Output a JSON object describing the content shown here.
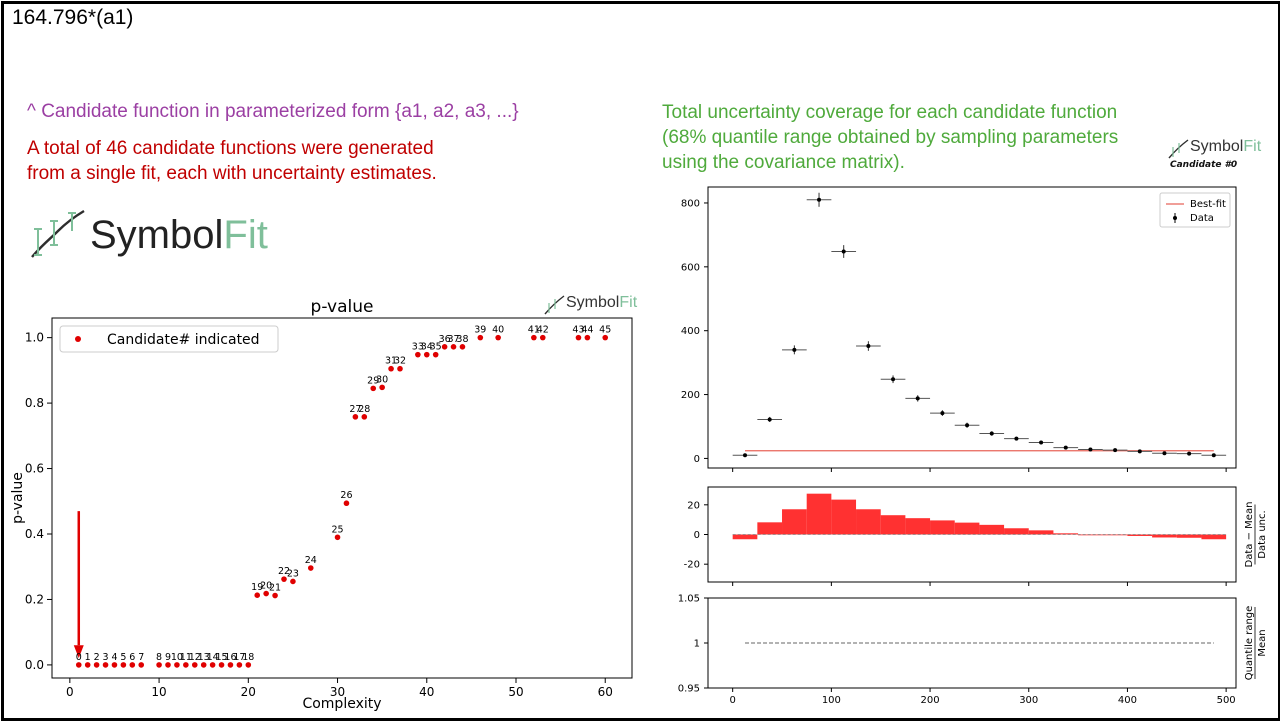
{
  "formula": "164.796*(a1)",
  "notes": {
    "parameterized": "^ Candidate function in parameterized form {a1, a2, a3, ...}",
    "total_line1": "A total of 46 candidate functions were generated",
    "total_line2": "from a single fit, each with uncertainty estimates.",
    "coverage_line1": "Total uncertainty coverage for each candidate function",
    "coverage_line2": "(68% quantile range obtained by sampling parameters",
    "coverage_line3": "using the covariance matrix)."
  },
  "logo": {
    "symbol": "Symbol",
    "fit": "Fit"
  },
  "candidate_label": "Candidate #0",
  "colors": {
    "red": "#e00000",
    "purple": "#9b3fa3",
    "green": "#4faa3c",
    "bestfit": "#e8645a",
    "residual": "#ff2020"
  },
  "chart_data": [
    {
      "type": "scatter",
      "title": "p-value",
      "xlabel": "Complexity",
      "ylabel": "p-value",
      "xlim": [
        -2,
        63
      ],
      "ylim": [
        -0.04,
        1.06
      ],
      "xticks": [
        0,
        10,
        20,
        30,
        40,
        50,
        60
      ],
      "yticks": [
        "0.0",
        "0.2",
        "0.4",
        "0.6",
        "0.8",
        "1.0"
      ],
      "legend": "Candidate# indicated",
      "legend_position": "top-left",
      "points": [
        {
          "label": "0",
          "x": 1,
          "y": 0
        },
        {
          "label": "1",
          "x": 2,
          "y": 0
        },
        {
          "label": "2",
          "x": 3,
          "y": 0
        },
        {
          "label": "3",
          "x": 4,
          "y": 0
        },
        {
          "label": "4",
          "x": 5,
          "y": 0
        },
        {
          "label": "5",
          "x": 6,
          "y": 0
        },
        {
          "label": "6",
          "x": 7,
          "y": 0
        },
        {
          "label": "7",
          "x": 8,
          "y": 0
        },
        {
          "label": "8",
          "x": 10,
          "y": 0
        },
        {
          "label": "9",
          "x": 11,
          "y": 0
        },
        {
          "label": "10",
          "x": 12,
          "y": 0
        },
        {
          "label": "11",
          "x": 13,
          "y": 0
        },
        {
          "label": "12",
          "x": 14,
          "y": 0
        },
        {
          "label": "13",
          "x": 15,
          "y": 0
        },
        {
          "label": "14",
          "x": 16,
          "y": 0
        },
        {
          "label": "15",
          "x": 17,
          "y": 0
        },
        {
          "label": "16",
          "x": 18,
          "y": 0
        },
        {
          "label": "17",
          "x": 19,
          "y": 0
        },
        {
          "label": "18",
          "x": 20,
          "y": 0
        },
        {
          "label": "19",
          "x": 21,
          "y": 0.213
        },
        {
          "label": "20",
          "x": 22,
          "y": 0.218
        },
        {
          "label": "21",
          "x": 23,
          "y": 0.212
        },
        {
          "label": "22",
          "x": 24,
          "y": 0.262
        },
        {
          "label": "23",
          "x": 25,
          "y": 0.255
        },
        {
          "label": "24",
          "x": 27,
          "y": 0.296
        },
        {
          "label": "25",
          "x": 30,
          "y": 0.39
        },
        {
          "label": "26",
          "x": 31,
          "y": 0.494
        },
        {
          "label": "27",
          "x": 32,
          "y": 0.758
        },
        {
          "label": "28",
          "x": 33,
          "y": 0.758
        },
        {
          "label": "29",
          "x": 34,
          "y": 0.845
        },
        {
          "label": "30",
          "x": 35,
          "y": 0.848
        },
        {
          "label": "31",
          "x": 36,
          "y": 0.905
        },
        {
          "label": "32",
          "x": 37,
          "y": 0.905
        },
        {
          "label": "33",
          "x": 39,
          "y": 0.948
        },
        {
          "label": "34",
          "x": 40,
          "y": 0.948
        },
        {
          "label": "35",
          "x": 41,
          "y": 0.948
        },
        {
          "label": "36",
          "x": 42,
          "y": 0.972
        },
        {
          "label": "37",
          "x": 43,
          "y": 0.972
        },
        {
          "label": "38",
          "x": 44,
          "y": 0.972
        },
        {
          "label": "39",
          "x": 46,
          "y": 1.0
        },
        {
          "label": "40",
          "x": 48,
          "y": 1.0
        },
        {
          "label": "41",
          "x": 52,
          "y": 1.0
        },
        {
          "label": "42",
          "x": 53,
          "y": 1.0
        },
        {
          "label": "43",
          "x": 57,
          "y": 1.0
        },
        {
          "label": "44",
          "x": 58,
          "y": 1.0
        },
        {
          "label": "45",
          "x": 60,
          "y": 1.0
        }
      ]
    },
    {
      "type": "scatter",
      "title": "",
      "xlim": [
        -25,
        510
      ],
      "ylim": [
        -30,
        850
      ],
      "yticks": [
        0,
        200,
        400,
        600,
        800
      ],
      "legend": [
        "Best-fit",
        "Data"
      ],
      "legend_position": "top-right",
      "bin_halfwidth": 12.5,
      "data": [
        {
          "x": 12.5,
          "y": 10,
          "err": 4
        },
        {
          "x": 37.5,
          "y": 122,
          "err": 8
        },
        {
          "x": 62.5,
          "y": 340,
          "err": 14
        },
        {
          "x": 87.5,
          "y": 810,
          "err": 22
        },
        {
          "x": 112.5,
          "y": 648,
          "err": 20
        },
        {
          "x": 137.5,
          "y": 352,
          "err": 15
        },
        {
          "x": 162.5,
          "y": 248,
          "err": 12
        },
        {
          "x": 187.5,
          "y": 188,
          "err": 10
        },
        {
          "x": 212.5,
          "y": 142,
          "err": 9
        },
        {
          "x": 237.5,
          "y": 104,
          "err": 8
        },
        {
          "x": 262.5,
          "y": 78,
          "err": 7
        },
        {
          "x": 287.5,
          "y": 62,
          "err": 6
        },
        {
          "x": 312.5,
          "y": 50,
          "err": 5
        },
        {
          "x": 337.5,
          "y": 34,
          "err": 4
        },
        {
          "x": 362.5,
          "y": 28,
          "err": 4
        },
        {
          "x": 387.5,
          "y": 26,
          "err": 4
        },
        {
          "x": 412.5,
          "y": 22,
          "err": 3
        },
        {
          "x": 437.5,
          "y": 16,
          "err": 3
        },
        {
          "x": 462.5,
          "y": 15,
          "err": 3
        },
        {
          "x": 487.5,
          "y": 10,
          "err": 3
        }
      ],
      "bestfit": {
        "x": [
          12.5,
          487.5
        ],
        "y": [
          24,
          24
        ]
      }
    },
    {
      "type": "bar",
      "ylabel": "Data − Mean / Data unc.",
      "ylabel_top": "Data − Mean",
      "ylabel_bottom": "Data unc.",
      "ylim": [
        -32,
        32
      ],
      "yticks": [
        -20,
        0,
        20
      ],
      "bin_edges": [
        0,
        25,
        50,
        75,
        100,
        125,
        150,
        175,
        200,
        225,
        250,
        275,
        300,
        325,
        350,
        375,
        400,
        425,
        450,
        475,
        500
      ],
      "values": [
        -3.2,
        8.2,
        17,
        27.5,
        23.5,
        17,
        13,
        11,
        9.5,
        8,
        6.5,
        4.2,
        2.8,
        0.8,
        -0.3,
        -0.5,
        -1,
        -2,
        -2.2,
        -3.2
      ]
    },
    {
      "type": "line",
      "ylabel_top": "Quantile range",
      "ylabel_bottom": "Mean",
      "ylim": [
        0.95,
        1.05
      ],
      "yticks": [
        "1.05",
        "1",
        "0.95"
      ],
      "xticks": [
        0,
        100,
        200,
        300,
        400,
        500
      ],
      "xlim": [
        -25,
        510
      ],
      "x": [
        12.5,
        487.5
      ],
      "y": [
        1,
        1
      ]
    }
  ]
}
